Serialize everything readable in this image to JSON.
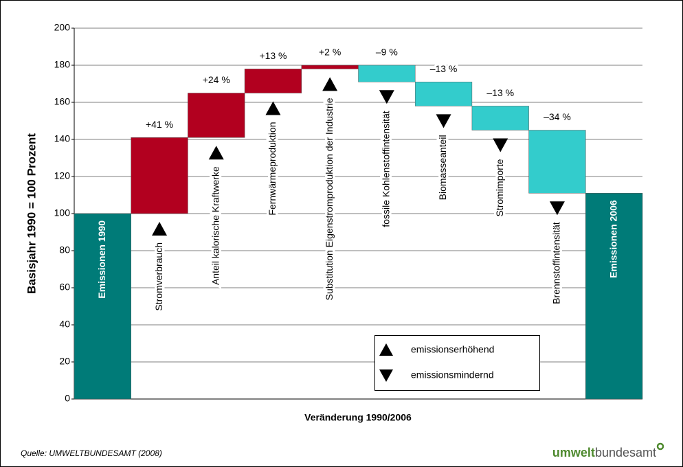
{
  "chart_data": {
    "type": "waterfall",
    "ylabel": "Basisjahr 1990 = 100 Prozent",
    "xlabel": "Veränderung 1990/2006",
    "categories": [
      "Emissionen 1990",
      "Stromverbrauch",
      "Anteil kalorische Kraftwerke",
      "Fernwärmeproduktion",
      "Substitution Eigenstromproduktion der Industrie",
      "fossile Kohlenstoffintensität",
      "Biomasseanteil",
      "Stromimporte",
      "Brennstoffintensität",
      "Emissionen 2006"
    ],
    "values": [
      100,
      41,
      24,
      13,
      2,
      -9,
      -13,
      -13,
      -34,
      111
    ],
    "value_labels": [
      null,
      "+41 %",
      "+24 %",
      "+13 %",
      "+2 %",
      "–9 %",
      "–13 %",
      "–13 %",
      "–34 %",
      null
    ],
    "total_color": "#007b78",
    "increase_color": "#b2001f",
    "decrease_color": "#33cccc",
    "ylim": [
      0,
      200
    ],
    "yticks": [
      0,
      20,
      40,
      60,
      80,
      100,
      120,
      140,
      160,
      180,
      200
    ],
    "grid": true,
    "legend": {
      "increase": "emissionserhöhend",
      "decrease": "emissionsmindernd"
    },
    "source": "Quelle: UMWELTBUNDESAMT (2008)",
    "logo": {
      "bold": "umwelt",
      "rest": "bundesamt"
    }
  }
}
